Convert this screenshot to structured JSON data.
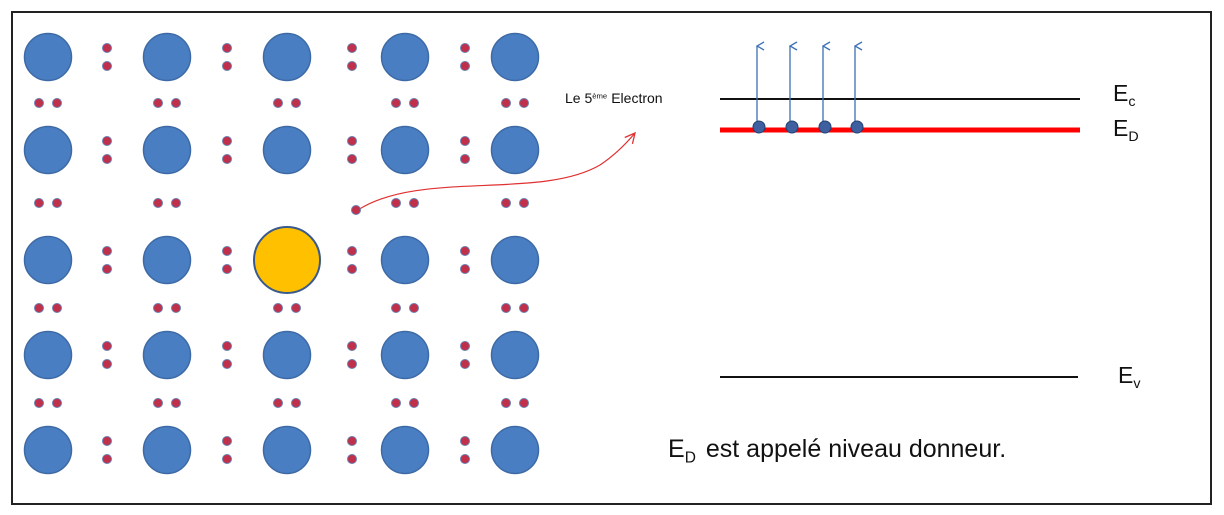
{
  "labels": {
    "electron": {
      "prefix": "Le 5",
      "sup": "ème",
      "suffix": "Electron"
    },
    "ec": {
      "main": "E",
      "sub": "c"
    },
    "ed": {
      "main": "E",
      "sub": "D"
    },
    "ev": {
      "main": "E",
      "sub": "v"
    }
  },
  "caption": {
    "main": "E",
    "sub": "D",
    "rest": "est appelé niveau donneur."
  }
}
